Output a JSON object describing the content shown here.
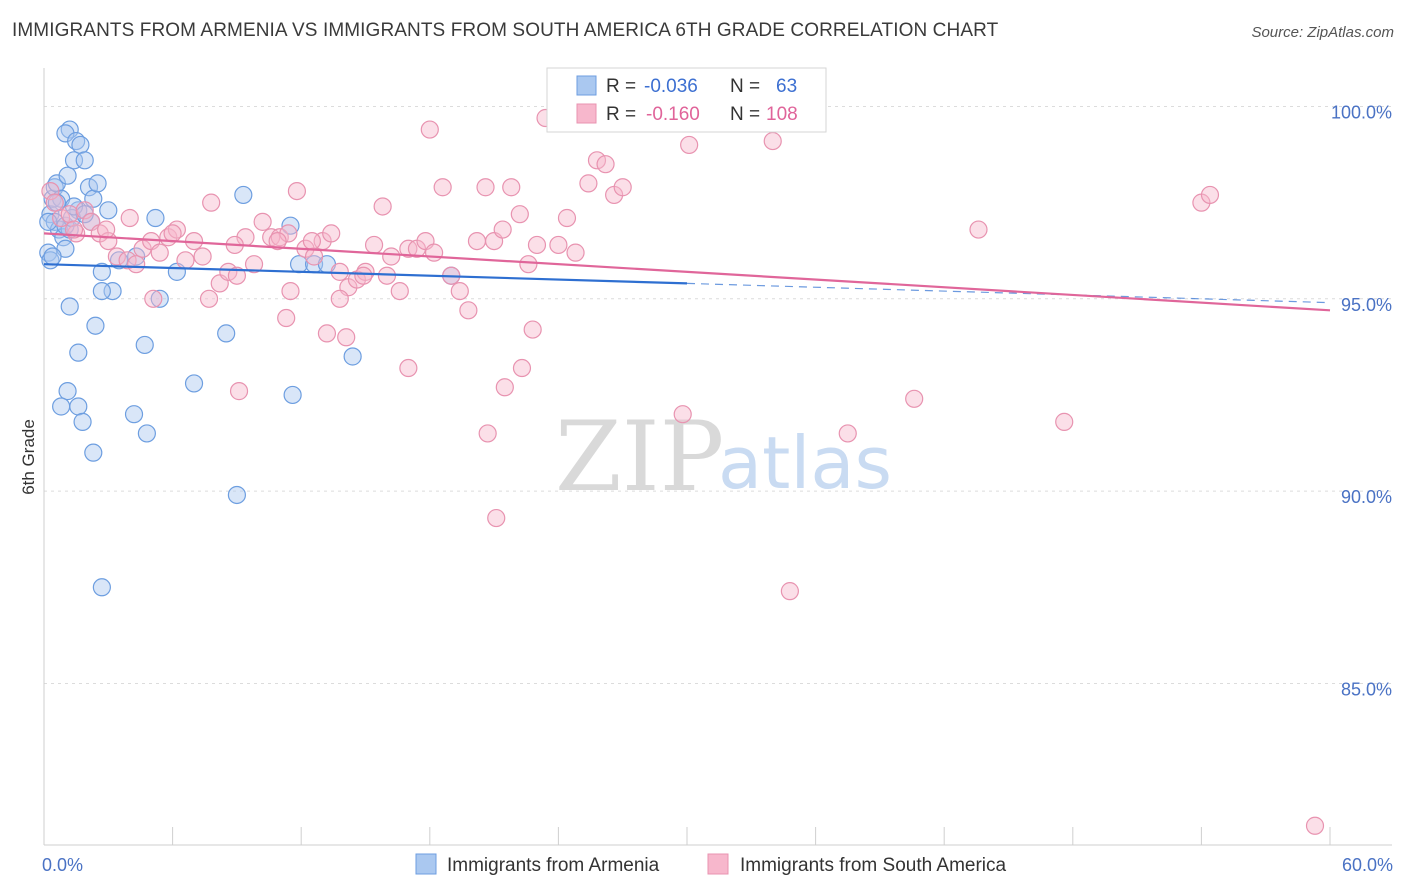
{
  "title": "IMMIGRANTS FROM ARMENIA VS IMMIGRANTS FROM SOUTH AMERICA 6TH GRADE CORRELATION CHART",
  "source": "Source: ZipAtlas.com",
  "watermark": {
    "zip": "ZIP",
    "atlas": "atlas"
  },
  "legend": {
    "r_label": "R =",
    "n_label": "N =",
    "rows": [
      {
        "r": "-0.036",
        "n": "63"
      },
      {
        "r": "-0.160",
        "n": "108"
      }
    ]
  },
  "bottom_legend": [
    "Immigrants from Armenia",
    "Immigrants from South America"
  ],
  "colors": {
    "blue_fill": "#aac8f0",
    "blue_stroke": "#6d9ee0",
    "blue_line": "#2e6fd1",
    "pink_fill": "#f7b7cc",
    "pink_stroke": "#e893b0",
    "pink_line": "#e0669a",
    "tick": "#4a72c4"
  },
  "chart_data": {
    "type": "scatter",
    "ylabel": "6th Grade",
    "xlim": [
      0,
      60
    ],
    "ylim": [
      80.8,
      101
    ],
    "x_tick_labels": [
      "0.0%",
      "60.0%"
    ],
    "y_ticks": [
      {
        "value": 100,
        "label": "100.0%"
      },
      {
        "value": 95,
        "label": "95.0%"
      },
      {
        "value": 90,
        "label": "90.0%"
      },
      {
        "value": 85,
        "label": "85.0%"
      }
    ],
    "series": [
      {
        "name": "Immigrants from Armenia",
        "color": "blue",
        "trend": {
          "x0": 0,
          "y0": 95.9,
          "x1": 30,
          "y1": 95.4,
          "dash_to": 60,
          "dash_y": 94.9
        },
        "points": [
          [
            0.2,
            96.2
          ],
          [
            0.3,
            97.2
          ],
          [
            0.3,
            96.0
          ],
          [
            0.4,
            97.6
          ],
          [
            0.5,
            97.9
          ],
          [
            0.5,
            97.0
          ],
          [
            0.6,
            98.0
          ],
          [
            0.7,
            96.8
          ],
          [
            0.8,
            97.6
          ],
          [
            0.9,
            96.6
          ],
          [
            1.0,
            96.3
          ],
          [
            1.1,
            98.2
          ],
          [
            1.2,
            99.4
          ],
          [
            1.0,
            99.3
          ],
          [
            1.4,
            98.6
          ],
          [
            1.5,
            99.1
          ],
          [
            1.7,
            99.0
          ],
          [
            1.9,
            98.6
          ],
          [
            2.1,
            97.9
          ],
          [
            2.3,
            97.6
          ],
          [
            2.5,
            98.0
          ],
          [
            1.6,
            97.3
          ],
          [
            1.2,
            96.8
          ],
          [
            1.0,
            96.9
          ],
          [
            0.4,
            96.1
          ],
          [
            2.2,
            97.0
          ],
          [
            1.3,
            97.1
          ],
          [
            5.2,
            97.1
          ],
          [
            3.5,
            96.0
          ],
          [
            4.3,
            96.1
          ],
          [
            5.4,
            95.0
          ],
          [
            6.2,
            95.7
          ],
          [
            3.2,
            95.2
          ],
          [
            2.7,
            95.2
          ],
          [
            2.7,
            95.7
          ],
          [
            9.3,
            97.7
          ],
          [
            11.5,
            96.9
          ],
          [
            11.9,
            95.9
          ],
          [
            12.6,
            95.9
          ],
          [
            13.2,
            95.9
          ],
          [
            19.0,
            95.6
          ],
          [
            1.2,
            94.8
          ],
          [
            2.4,
            94.3
          ],
          [
            1.6,
            93.6
          ],
          [
            4.7,
            93.8
          ],
          [
            8.5,
            94.1
          ],
          [
            14.4,
            93.5
          ],
          [
            1.1,
            92.6
          ],
          [
            7.0,
            92.8
          ],
          [
            11.6,
            92.5
          ],
          [
            0.8,
            92.2
          ],
          [
            1.6,
            92.2
          ],
          [
            1.8,
            91.8
          ],
          [
            4.2,
            92.0
          ],
          [
            4.8,
            91.5
          ],
          [
            2.3,
            91.0
          ],
          [
            9.0,
            89.9
          ],
          [
            2.7,
            87.5
          ],
          [
            0.2,
            97.0
          ],
          [
            0.6,
            97.5
          ],
          [
            1.4,
            97.4
          ],
          [
            3.0,
            97.3
          ],
          [
            1.9,
            97.2
          ]
        ]
      },
      {
        "name": "Immigrants from South America",
        "color": "pink",
        "trend": {
          "x0": 0,
          "y0": 96.7,
          "x1": 60,
          "y1": 94.7
        },
        "points": [
          [
            0.3,
            97.8
          ],
          [
            0.5,
            97.5
          ],
          [
            0.8,
            97.1
          ],
          [
            1.2,
            97.2
          ],
          [
            1.5,
            96.7
          ],
          [
            1.9,
            97.3
          ],
          [
            2.2,
            97.0
          ],
          [
            2.6,
            96.7
          ],
          [
            3.0,
            96.5
          ],
          [
            3.4,
            96.1
          ],
          [
            3.9,
            96.0
          ],
          [
            4.3,
            95.9
          ],
          [
            4.6,
            96.3
          ],
          [
            5.0,
            96.5
          ],
          [
            5.4,
            96.2
          ],
          [
            5.8,
            96.6
          ],
          [
            6.2,
            96.8
          ],
          [
            6.6,
            96.0
          ],
          [
            7.0,
            96.5
          ],
          [
            7.4,
            96.1
          ],
          [
            7.8,
            97.5
          ],
          [
            8.2,
            95.4
          ],
          [
            8.6,
            95.7
          ],
          [
            9.0,
            95.6
          ],
          [
            9.4,
            96.6
          ],
          [
            9.8,
            95.9
          ],
          [
            10.2,
            97.0
          ],
          [
            10.6,
            96.6
          ],
          [
            11.0,
            96.6
          ],
          [
            11.4,
            96.7
          ],
          [
            11.8,
            97.8
          ],
          [
            12.2,
            96.3
          ],
          [
            12.6,
            96.1
          ],
          [
            13.0,
            96.5
          ],
          [
            13.4,
            96.7
          ],
          [
            13.8,
            95.7
          ],
          [
            14.2,
            95.3
          ],
          [
            14.6,
            95.5
          ],
          [
            15.0,
            95.7
          ],
          [
            15.4,
            96.4
          ],
          [
            15.8,
            97.4
          ],
          [
            16.2,
            96.1
          ],
          [
            16.6,
            95.2
          ],
          [
            17.0,
            96.3
          ],
          [
            17.4,
            96.3
          ],
          [
            17.8,
            96.5
          ],
          [
            18.2,
            96.2
          ],
          [
            18.6,
            97.9
          ],
          [
            19.0,
            95.6
          ],
          [
            19.4,
            95.2
          ],
          [
            19.8,
            94.7
          ],
          [
            20.2,
            96.5
          ],
          [
            20.6,
            97.9
          ],
          [
            21.0,
            96.5
          ],
          [
            21.4,
            96.8
          ],
          [
            21.8,
            97.9
          ],
          [
            22.2,
            97.2
          ],
          [
            22.6,
            95.9
          ],
          [
            23.0,
            96.4
          ],
          [
            23.4,
            99.7
          ],
          [
            24.0,
            96.4
          ],
          [
            24.4,
            97.1
          ],
          [
            24.8,
            96.2
          ],
          [
            25.4,
            98.0
          ],
          [
            25.8,
            98.6
          ],
          [
            26.2,
            98.5
          ],
          [
            26.6,
            97.7
          ],
          [
            27.0,
            97.9
          ],
          [
            18.0,
            99.4
          ],
          [
            27.2,
            100.1
          ],
          [
            28.2,
            99.9
          ],
          [
            32.4,
            99.9
          ],
          [
            30.1,
            99.0
          ],
          [
            34.0,
            99.1
          ],
          [
            35.0,
            100.0
          ],
          [
            35.9,
            99.6
          ],
          [
            20.7,
            91.5
          ],
          [
            21.5,
            92.7
          ],
          [
            22.3,
            93.2
          ],
          [
            22.8,
            94.2
          ],
          [
            17.0,
            93.2
          ],
          [
            14.1,
            94.0
          ],
          [
            13.2,
            94.1
          ],
          [
            11.3,
            94.5
          ],
          [
            11.5,
            95.2
          ],
          [
            13.8,
            95.0
          ],
          [
            7.7,
            95.0
          ],
          [
            5.1,
            95.0
          ],
          [
            9.1,
            92.6
          ],
          [
            29.8,
            92.0
          ],
          [
            37.5,
            91.5
          ],
          [
            40.6,
            92.4
          ],
          [
            47.6,
            91.8
          ],
          [
            21.1,
            89.3
          ],
          [
            34.8,
            87.4
          ],
          [
            59.3,
            81.3
          ],
          [
            43.6,
            96.8
          ],
          [
            54.0,
            97.5
          ],
          [
            54.4,
            97.7
          ],
          [
            1.4,
            96.8
          ],
          [
            2.9,
            96.8
          ],
          [
            4.0,
            97.1
          ],
          [
            6.0,
            96.7
          ],
          [
            8.9,
            96.4
          ],
          [
            10.9,
            96.5
          ],
          [
            12.5,
            96.5
          ],
          [
            14.9,
            95.6
          ],
          [
            16.0,
            95.6
          ]
        ]
      }
    ]
  }
}
